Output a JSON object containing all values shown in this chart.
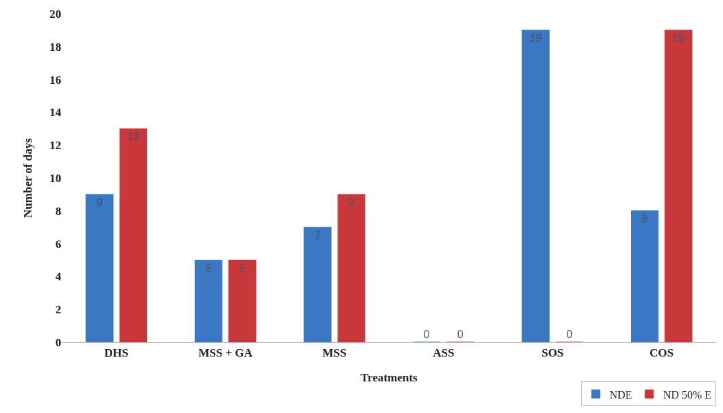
{
  "chart_data": {
    "type": "bar",
    "xlabel": "Treatments",
    "ylabel": "Number of days",
    "categories": [
      "DHS",
      "MSS + GA",
      "MSS",
      "ASS",
      "SOS",
      "COS"
    ],
    "series": [
      {
        "name": "NDE",
        "color": "#3a78c4",
        "values": [
          9,
          5,
          7,
          0,
          19,
          8
        ]
      },
      {
        "name": "ND 50% E",
        "color": "#c8383a",
        "values": [
          13,
          5,
          9,
          0,
          0,
          19
        ]
      }
    ],
    "ylim": [
      0,
      20
    ],
    "yticks": [
      0,
      2,
      4,
      6,
      8,
      10,
      12,
      14,
      16,
      18,
      20
    ],
    "grid": false,
    "legend": "bottom right",
    "data_labels": true
  }
}
